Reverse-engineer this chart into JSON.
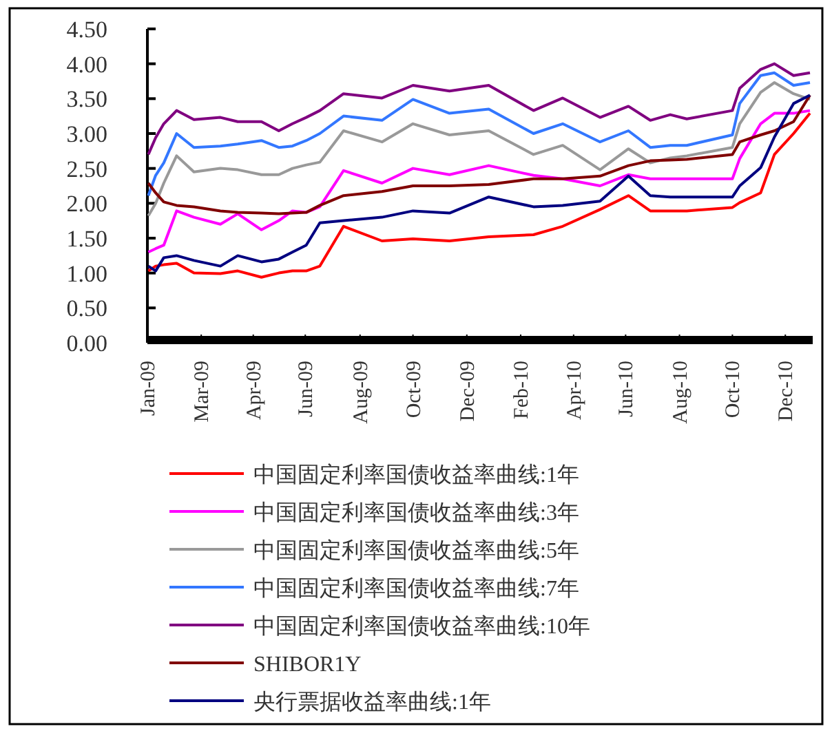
{
  "chart_data": {
    "type": "line",
    "legend": "bottom",
    "x": [
      "2009-01-02",
      "2009-01-10",
      "2009-01-19",
      "2009-02-02",
      "2009-02-21",
      "2009-03-22",
      "2009-04-10",
      "2009-05-06",
      "2009-05-25",
      "2009-06-09",
      "2009-06-24",
      "2009-07-09",
      "2009-08-04",
      "2009-09-15",
      "2009-10-19",
      "2009-11-28",
      "2010-01-10",
      "2010-02-28",
      "2010-04-01",
      "2010-05-12",
      "2010-06-12",
      "2010-07-06",
      "2010-07-28",
      "2010-08-15",
      "2010-10-04",
      "2010-10-12",
      "2010-11-04",
      "2010-11-19",
      "2010-12-10",
      "2010-12-28"
    ],
    "xlim": [
      "2009-01-01",
      "2010-12-31"
    ],
    "xticks": [
      {
        "value": "2009-01-01",
        "label": "Jan-09"
      },
      {
        "value": "2009-03-01",
        "label": "Mar-09"
      },
      {
        "value": "2009-04-27",
        "label": "Apr-09"
      },
      {
        "value": "2009-06-23",
        "label": "Jun-09"
      },
      {
        "value": "2009-08-22",
        "label": "Aug-09"
      },
      {
        "value": "2009-10-19",
        "label": "Oct-09"
      },
      {
        "value": "2009-12-17",
        "label": "Dec-09"
      },
      {
        "value": "2010-02-14",
        "label": "Feb-10"
      },
      {
        "value": "2010-04-13",
        "label": "Apr-10"
      },
      {
        "value": "2010-06-09",
        "label": "Jun-10"
      },
      {
        "value": "2010-08-07",
        "label": "Aug-10"
      },
      {
        "value": "2010-10-04",
        "label": "Oct-10"
      },
      {
        "value": "2010-12-01",
        "label": "Dec-10"
      }
    ],
    "ylim": [
      0,
      4.5
    ],
    "yticks": [
      {
        "value": 0,
        "label": "0.00"
      },
      {
        "value": 0.5,
        "label": "0.50"
      },
      {
        "value": 1,
        "label": "1.00"
      },
      {
        "value": 1.5,
        "label": "1.50"
      },
      {
        "value": 2,
        "label": "2.00"
      },
      {
        "value": 2.5,
        "label": "2.50"
      },
      {
        "value": 3,
        "label": "3.00"
      },
      {
        "value": 3.5,
        "label": "3.50"
      },
      {
        "value": 4,
        "label": "4.00"
      },
      {
        "value": 4.5,
        "label": "4.50"
      }
    ],
    "series": [
      {
        "name": "中国固定利率国债收益率曲线:1年",
        "color": "#ff0000",
        "values": [
          1.03,
          1.1,
          1.12,
          1.14,
          1.0,
          0.99,
          1.03,
          0.94,
          1.0,
          1.03,
          1.03,
          1.1,
          1.67,
          1.46,
          1.49,
          1.46,
          1.52,
          1.55,
          1.67,
          1.91,
          2.11,
          1.89,
          1.89,
          1.89,
          1.94,
          2.01,
          2.15,
          2.7,
          3.0,
          3.29
        ]
      },
      {
        "name": "中国固定利率国债收益率曲线:3年",
        "color": "#ff00ff",
        "values": [
          1.3,
          1.35,
          1.4,
          1.89,
          1.8,
          1.7,
          1.85,
          1.62,
          1.75,
          1.89,
          1.87,
          1.95,
          2.47,
          2.29,
          2.5,
          2.41,
          2.54,
          2.4,
          2.35,
          2.25,
          2.41,
          2.35,
          2.35,
          2.35,
          2.35,
          2.64,
          3.14,
          3.29,
          3.29,
          3.33
        ]
      },
      {
        "name": "中国固定利率国债收益率曲线:5年",
        "color": "#999999",
        "values": [
          1.82,
          2.0,
          2.29,
          2.68,
          2.45,
          2.5,
          2.48,
          2.41,
          2.41,
          2.5,
          2.55,
          2.59,
          3.04,
          2.88,
          3.14,
          2.98,
          3.04,
          2.7,
          2.83,
          2.48,
          2.78,
          2.58,
          2.65,
          2.68,
          2.8,
          3.14,
          3.59,
          3.73,
          3.57,
          3.49
        ]
      },
      {
        "name": "中国固定利率国债收益率曲线:7年",
        "color": "#3377ff",
        "values": [
          2.11,
          2.4,
          2.58,
          3.0,
          2.8,
          2.82,
          2.85,
          2.9,
          2.8,
          2.82,
          2.9,
          3.0,
          3.25,
          3.19,
          3.49,
          3.29,
          3.35,
          3.0,
          3.14,
          2.88,
          3.04,
          2.8,
          2.83,
          2.83,
          2.98,
          3.43,
          3.83,
          3.87,
          3.69,
          3.73
        ]
      },
      {
        "name": "中国固定利率国债收益率曲线:10年",
        "color": "#800080",
        "values": [
          2.7,
          2.94,
          3.14,
          3.33,
          3.2,
          3.23,
          3.17,
          3.17,
          3.04,
          3.14,
          3.23,
          3.33,
          3.57,
          3.51,
          3.69,
          3.61,
          3.69,
          3.33,
          3.51,
          3.23,
          3.39,
          3.19,
          3.27,
          3.21,
          3.33,
          3.65,
          3.92,
          4.0,
          3.83,
          3.87
        ]
      },
      {
        "name": "SHIBOR1Y",
        "color": "#800000",
        "values": [
          2.29,
          2.15,
          2.02,
          1.97,
          1.95,
          1.89,
          1.87,
          1.86,
          1.85,
          1.86,
          1.87,
          1.97,
          2.11,
          2.17,
          2.25,
          2.25,
          2.27,
          2.35,
          2.35,
          2.39,
          2.54,
          2.61,
          2.62,
          2.63,
          2.7,
          2.88,
          2.98,
          3.04,
          3.17,
          3.55
        ]
      },
      {
        "name": "央行票据收益率曲线:1年",
        "color": "#000080",
        "values": [
          1.1,
          1.03,
          1.22,
          1.25,
          1.18,
          1.1,
          1.25,
          1.16,
          1.2,
          1.3,
          1.4,
          1.72,
          1.75,
          1.8,
          1.89,
          1.86,
          2.09,
          1.95,
          1.97,
          2.03,
          2.39,
          2.11,
          2.09,
          2.09,
          2.09,
          2.25,
          2.51,
          2.95,
          3.43,
          3.55
        ]
      }
    ]
  }
}
